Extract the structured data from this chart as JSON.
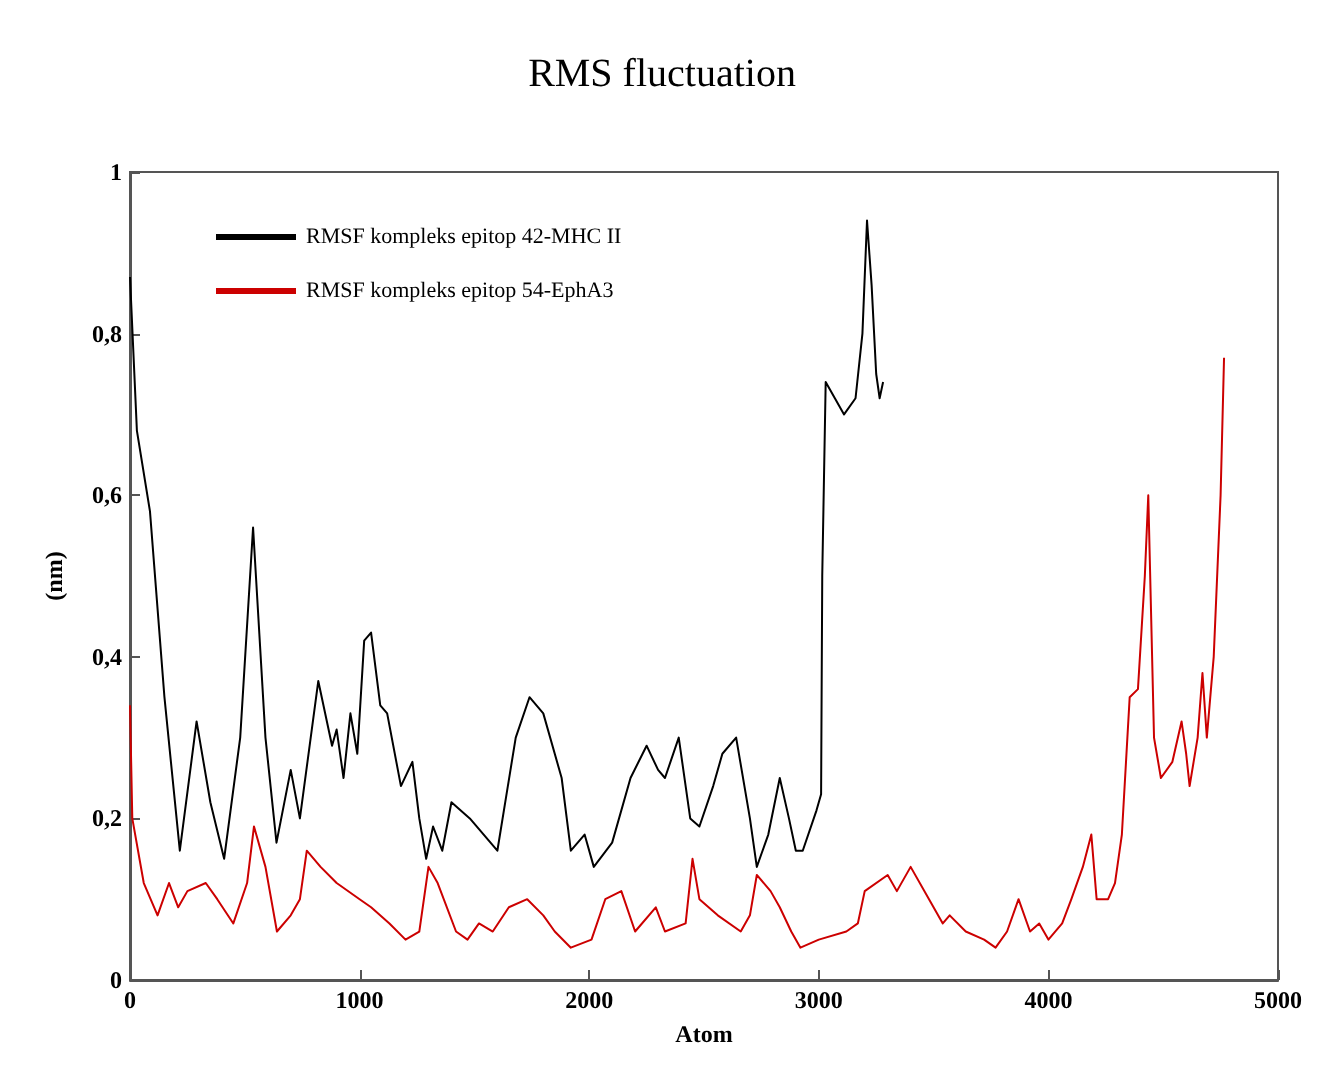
{
  "chart_data": {
    "type": "line",
    "title": "RMS fluctuation",
    "xlabel": "Atom",
    "ylabel": "(nm)",
    "xlim": [
      0,
      5000
    ],
    "xticks": [
      0,
      1000,
      2000,
      3000,
      4000,
      5000
    ],
    "ylim": [
      0,
      1
    ],
    "yticks": [
      0,
      {
        "value": 0.2,
        "label": "0,2"
      },
      {
        "value": 0.4,
        "label": "0,4"
      },
      {
        "value": 0.6,
        "label": "0,6"
      },
      {
        "value": 0.8,
        "label": "0,8"
      },
      1
    ],
    "grid": false,
    "legend": "top left",
    "marker": "none",
    "line_style": "solid",
    "series": [
      {
        "name": "RMSF kompleks epitop 42-MHC II",
        "color": "#000000",
        "x": [
          0,
          30,
          87,
          150,
          217,
          290,
          350,
          410,
          480,
          536,
          590,
          638,
          700,
          740,
          820,
          880,
          900,
          930,
          960,
          990,
          1020,
          1050,
          1090,
          1120,
          1180,
          1230,
          1260,
          1290,
          1320,
          1360,
          1400,
          1480,
          1600,
          1680,
          1740,
          1800,
          1880,
          1920,
          1980,
          2020,
          2100,
          2180,
          2250,
          2300,
          2330,
          2390,
          2440,
          2480,
          2540,
          2580,
          2640,
          2700,
          2730,
          2780,
          2830,
          2870,
          2900,
          2930,
          2990,
          3010,
          3015,
          3030,
          3070,
          3110,
          3160,
          3190,
          3210,
          3230,
          3250,
          3265,
          3280
        ],
        "values": [
          0.87,
          0.68,
          0.58,
          0.35,
          0.16,
          0.32,
          0.22,
          0.15,
          0.3,
          0.56,
          0.3,
          0.17,
          0.26,
          0.2,
          0.37,
          0.29,
          0.31,
          0.25,
          0.33,
          0.28,
          0.42,
          0.43,
          0.34,
          0.33,
          0.24,
          0.27,
          0.2,
          0.15,
          0.19,
          0.16,
          0.22,
          0.2,
          0.16,
          0.3,
          0.35,
          0.33,
          0.25,
          0.16,
          0.18,
          0.14,
          0.17,
          0.25,
          0.29,
          0.26,
          0.25,
          0.3,
          0.2,
          0.19,
          0.24,
          0.28,
          0.3,
          0.2,
          0.14,
          0.18,
          0.25,
          0.2,
          0.16,
          0.16,
          0.21,
          0.23,
          0.5,
          0.74,
          0.72,
          0.7,
          0.72,
          0.8,
          0.94,
          0.86,
          0.75,
          0.72,
          0.74
        ]
      },
      {
        "name": "RMSF kompleks epitop 54-EphA3",
        "color": "#cc0000",
        "x": [
          0,
          10,
          60,
          120,
          170,
          210,
          250,
          330,
          380,
          450,
          510,
          540,
          590,
          640,
          700,
          740,
          770,
          830,
          900,
          1000,
          1050,
          1130,
          1200,
          1260,
          1300,
          1340,
          1420,
          1470,
          1520,
          1580,
          1650,
          1730,
          1800,
          1850,
          1920,
          2010,
          2070,
          2140,
          2200,
          2290,
          2330,
          2420,
          2450,
          2480,
          2560,
          2660,
          2700,
          2730,
          2790,
          2830,
          2880,
          2920,
          3000,
          3120,
          3170,
          3200,
          3300,
          3340,
          3400,
          3480,
          3540,
          3570,
          3640,
          3720,
          3770,
          3820,
          3870,
          3920,
          3960,
          4000,
          4060,
          4100,
          4150,
          4187,
          4210,
          4260,
          4290,
          4320,
          4354,
          4390,
          4420,
          4435,
          4460,
          4490,
          4540,
          4580,
          4600,
          4615,
          4650,
          4671,
          4690,
          4720,
          4750,
          4765
        ],
        "values": [
          0.34,
          0.2,
          0.12,
          0.08,
          0.12,
          0.09,
          0.11,
          0.12,
          0.1,
          0.07,
          0.12,
          0.19,
          0.14,
          0.06,
          0.08,
          0.1,
          0.16,
          0.14,
          0.12,
          0.1,
          0.09,
          0.07,
          0.05,
          0.06,
          0.14,
          0.12,
          0.06,
          0.05,
          0.07,
          0.06,
          0.09,
          0.1,
          0.08,
          0.06,
          0.04,
          0.05,
          0.1,
          0.11,
          0.06,
          0.09,
          0.06,
          0.07,
          0.15,
          0.1,
          0.08,
          0.06,
          0.08,
          0.13,
          0.11,
          0.09,
          0.06,
          0.04,
          0.05,
          0.06,
          0.07,
          0.11,
          0.13,
          0.11,
          0.14,
          0.1,
          0.07,
          0.08,
          0.06,
          0.05,
          0.04,
          0.06,
          0.1,
          0.06,
          0.07,
          0.05,
          0.07,
          0.1,
          0.14,
          0.18,
          0.1,
          0.1,
          0.12,
          0.18,
          0.35,
          0.36,
          0.5,
          0.6,
          0.3,
          0.25,
          0.27,
          0.32,
          0.28,
          0.24,
          0.3,
          0.38,
          0.3,
          0.4,
          0.6,
          0.77
        ]
      }
    ]
  }
}
